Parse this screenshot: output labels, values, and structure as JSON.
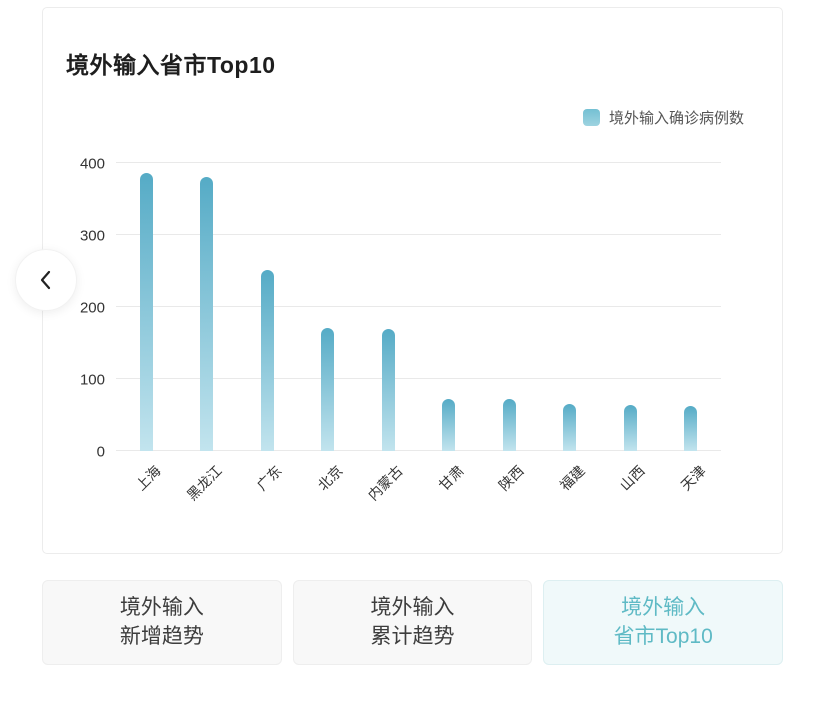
{
  "card": {
    "title": "境外输入省市Top10"
  },
  "legend": {
    "label": "境外输入确诊病例数",
    "color": "#74c0d3"
  },
  "chart_data": {
    "type": "bar",
    "title": "境外输入省市Top10",
    "categories": [
      "上海",
      "黑龙江",
      "广东",
      "北京",
      "内蒙古",
      "甘肃",
      "陕西",
      "福建",
      "山西",
      "天津"
    ],
    "values": [
      386,
      381,
      252,
      171,
      169,
      72,
      72,
      65,
      64,
      63
    ],
    "series_name": "境外输入确诊病例数",
    "xlabel": "",
    "ylabel": "",
    "ylim": [
      0,
      400
    ],
    "yticks": [
      0,
      100,
      200,
      300,
      400
    ],
    "grid": true,
    "legend_position": "top-right",
    "xlabel_rotation_deg": -45,
    "bar_gradient_top": "#55abc6",
    "bar_gradient_bottom": "#c2e4ee"
  },
  "carousel": {
    "prev": "previous"
  },
  "tabs": [
    {
      "line1": "境外输入",
      "line2": "新增趋势",
      "active": false
    },
    {
      "line1": "境外输入",
      "line2": "累计趋势",
      "active": false
    },
    {
      "line1": "境外输入",
      "line2": "省市Top10",
      "active": true
    }
  ],
  "colors": {
    "accent_teal": "#5fbac5",
    "active_tab_bg": "#f0f9fa",
    "inactive_tab_bg": "#f8f8f8",
    "grid_line": "#e9e9e9",
    "text_dark": "#1e1e1e"
  }
}
